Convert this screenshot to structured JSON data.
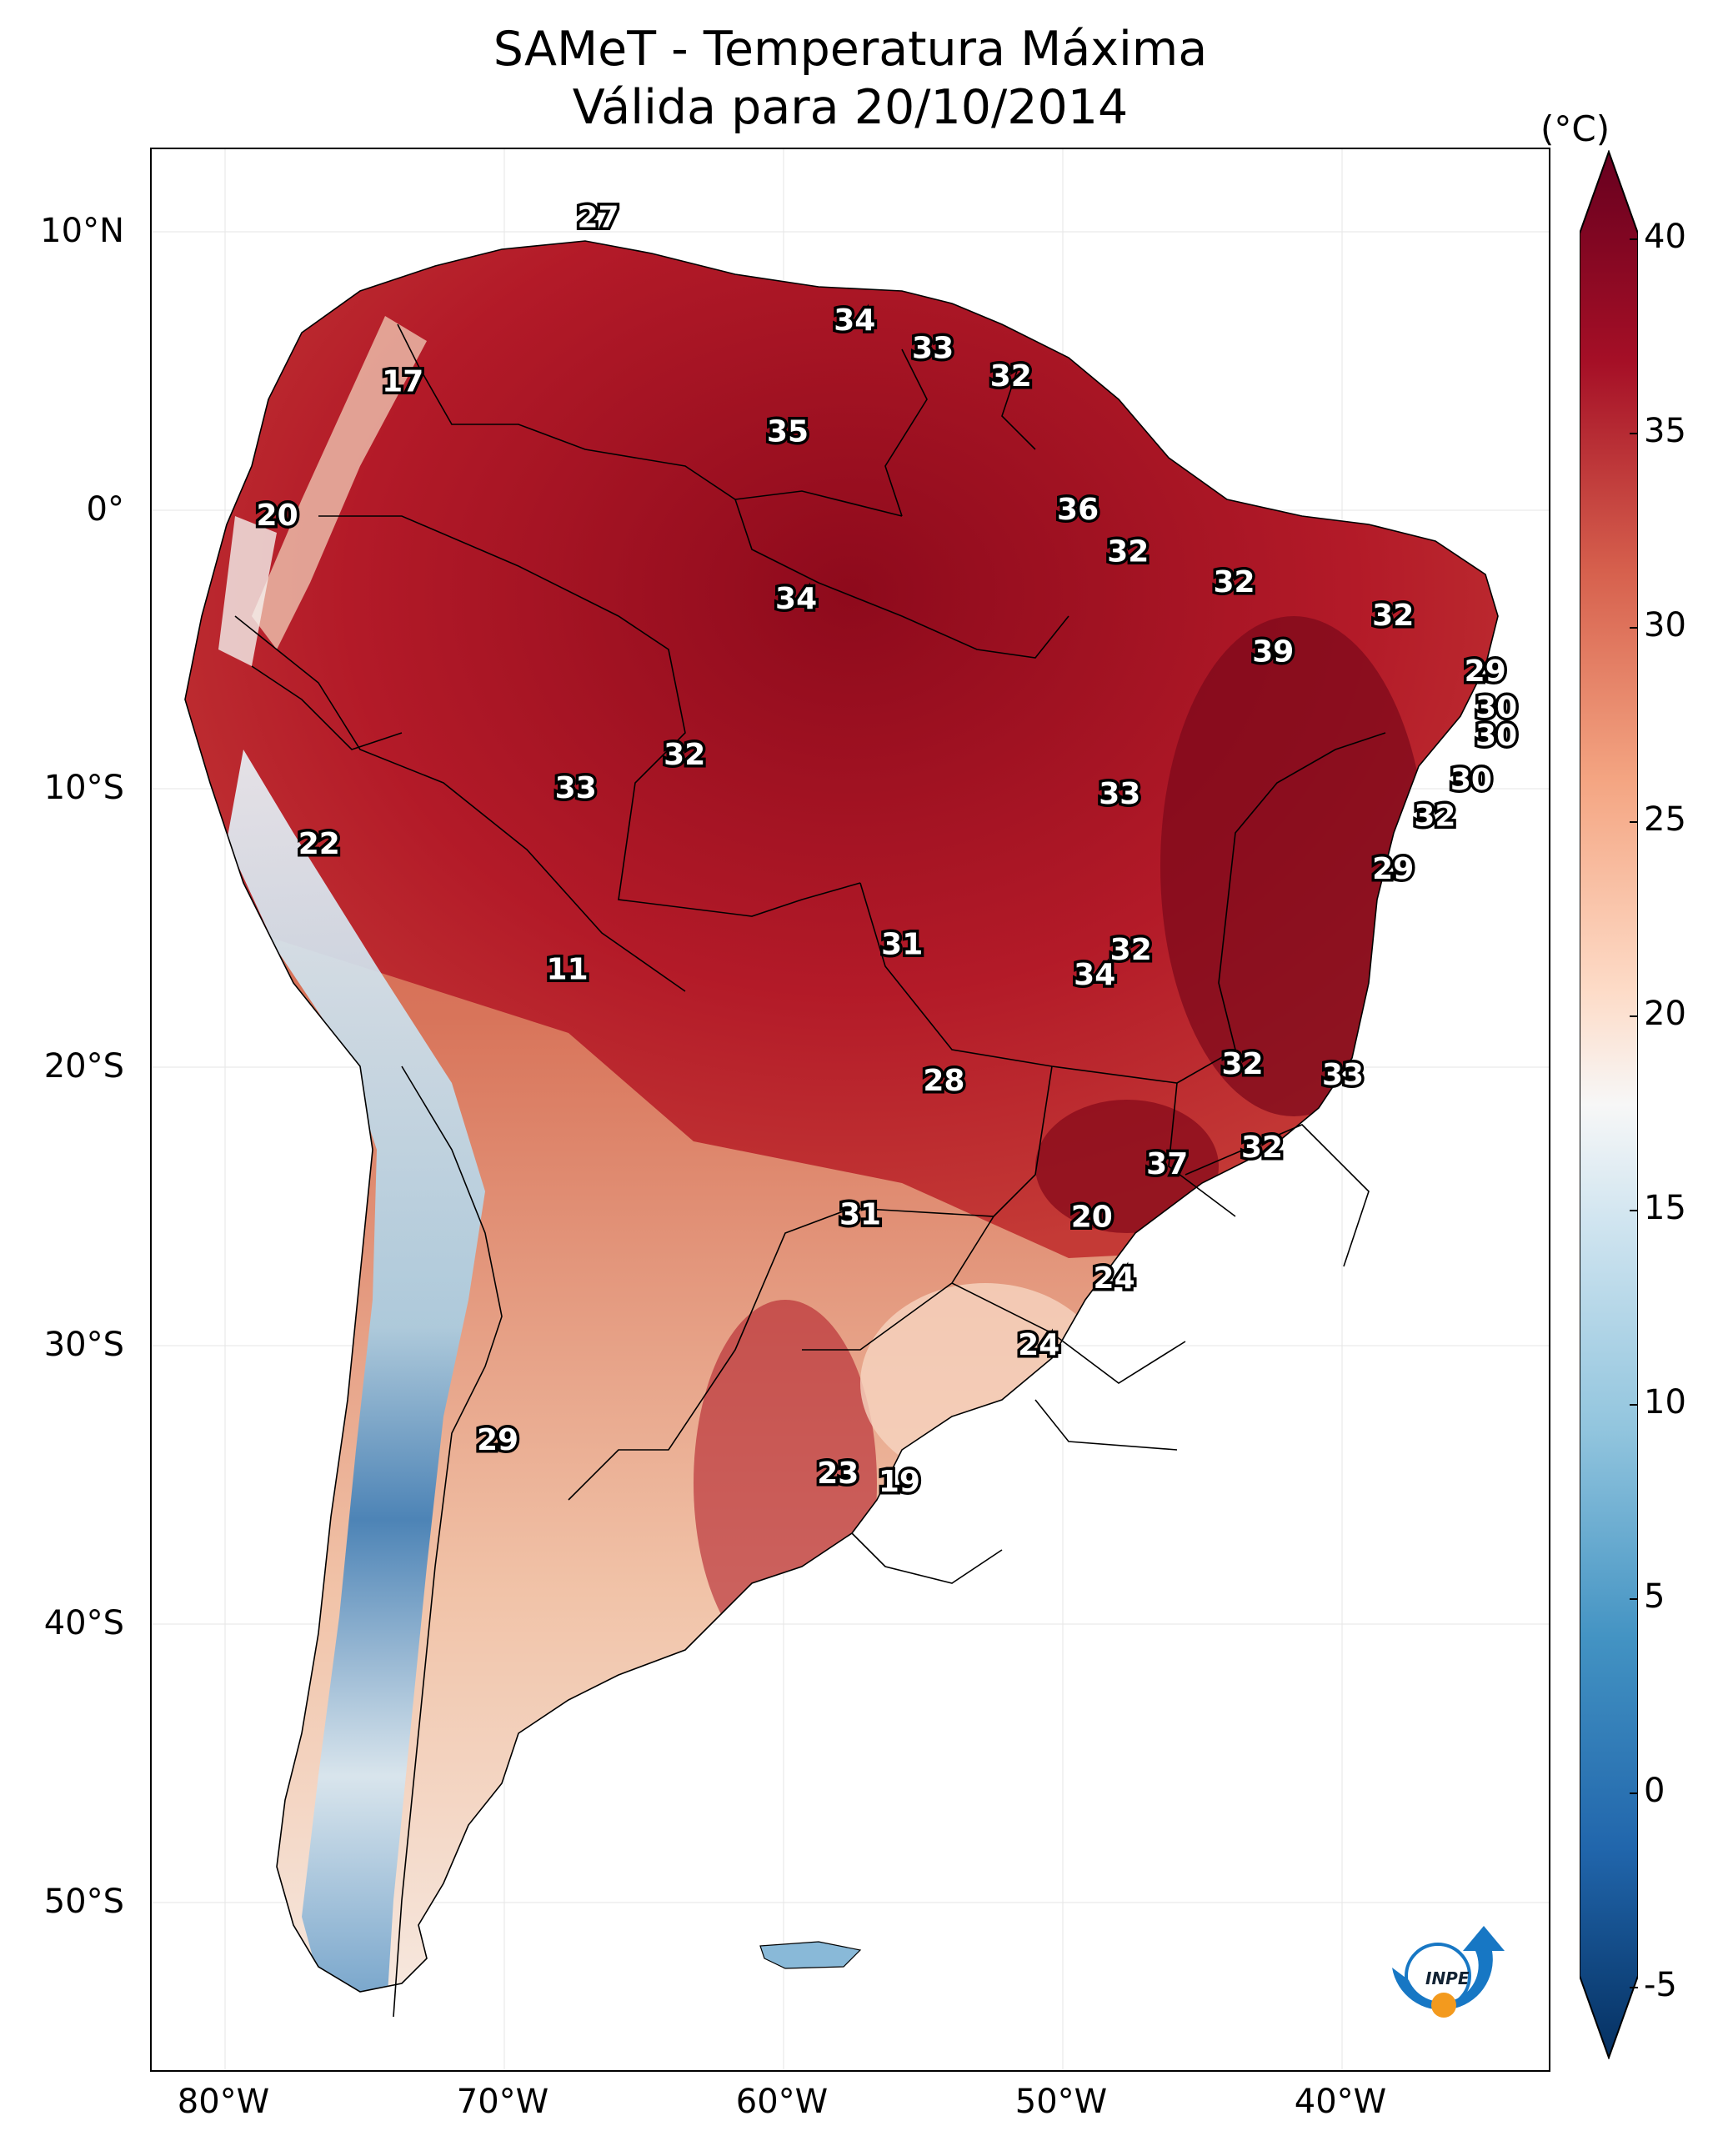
{
  "title": {
    "line1": "SAMeT - Temperatura Máxima",
    "line2": "Válida para 20/10/2014"
  },
  "axes": {
    "lat_ticks": [
      "10°N",
      "0°",
      "10°S",
      "20°S",
      "30°S",
      "40°S",
      "50°S"
    ],
    "lon_ticks": [
      "80°W",
      "70°W",
      "60°W",
      "50°W",
      "40°W"
    ]
  },
  "colorbar": {
    "unit": "(°C)",
    "ticks": [
      "40",
      "35",
      "30",
      "25",
      "20",
      "15",
      "10",
      "5",
      "0",
      "-5"
    ],
    "min": -5,
    "max": 40
  },
  "logo_text": "INPE",
  "stations": [
    {
      "value": "27",
      "lon": -67.0,
      "lat": 10.5
    },
    {
      "value": "17",
      "lon": -74.0,
      "lat": 4.6
    },
    {
      "value": "34",
      "lon": -57.8,
      "lat": 6.8
    },
    {
      "value": "33",
      "lon": -55.0,
      "lat": 5.8
    },
    {
      "value": "32",
      "lon": -52.2,
      "lat": 4.8
    },
    {
      "value": "35",
      "lon": -60.2,
      "lat": 2.8
    },
    {
      "value": "20",
      "lon": -78.5,
      "lat": -0.2
    },
    {
      "value": "36",
      "lon": -49.8,
      "lat": 0.0
    },
    {
      "value": "32",
      "lon": -48.0,
      "lat": -1.5
    },
    {
      "value": "34",
      "lon": -59.9,
      "lat": -3.2
    },
    {
      "value": "32",
      "lon": -44.2,
      "lat": -2.6
    },
    {
      "value": "32",
      "lon": -38.5,
      "lat": -3.8
    },
    {
      "value": "39",
      "lon": -42.8,
      "lat": -5.1
    },
    {
      "value": "29",
      "lon": -35.2,
      "lat": -5.8
    },
    {
      "value": "30",
      "lon": -34.8,
      "lat": -7.1
    },
    {
      "value": "30",
      "lon": -34.8,
      "lat": -8.1
    },
    {
      "value": "32",
      "lon": -63.9,
      "lat": -8.8
    },
    {
      "value": "33",
      "lon": -67.8,
      "lat": -10.0
    },
    {
      "value": "33",
      "lon": -48.3,
      "lat": -10.2
    },
    {
      "value": "30",
      "lon": -35.7,
      "lat": -9.7
    },
    {
      "value": "32",
      "lon": -37.0,
      "lat": -11.0
    },
    {
      "value": "22",
      "lon": -77.0,
      "lat": -12.0
    },
    {
      "value": "29",
      "lon": -38.5,
      "lat": -12.9
    },
    {
      "value": "31",
      "lon": -56.1,
      "lat": -15.6
    },
    {
      "value": "32",
      "lon": -47.9,
      "lat": -15.8
    },
    {
      "value": "34",
      "lon": -49.2,
      "lat": -16.7
    },
    {
      "value": "11",
      "lon": -68.1,
      "lat": -16.5
    },
    {
      "value": "32",
      "lon": -43.9,
      "lat": -19.9
    },
    {
      "value": "33",
      "lon": -40.3,
      "lat": -20.3
    },
    {
      "value": "28",
      "lon": -54.6,
      "lat": -20.5
    },
    {
      "value": "32",
      "lon": -43.2,
      "lat": -22.9
    },
    {
      "value": "37",
      "lon": -46.6,
      "lat": -23.5
    },
    {
      "value": "20",
      "lon": -49.3,
      "lat": -25.4
    },
    {
      "value": "31",
      "lon": -57.6,
      "lat": -25.3
    },
    {
      "value": "24",
      "lon": -48.5,
      "lat": -27.6
    },
    {
      "value": "24",
      "lon": -51.2,
      "lat": -30.0
    },
    {
      "value": "29",
      "lon": -70.6,
      "lat": -33.4
    },
    {
      "value": "23",
      "lon": -58.4,
      "lat": -34.6
    },
    {
      "value": "19",
      "lon": -56.2,
      "lat": -34.9
    }
  ]
}
